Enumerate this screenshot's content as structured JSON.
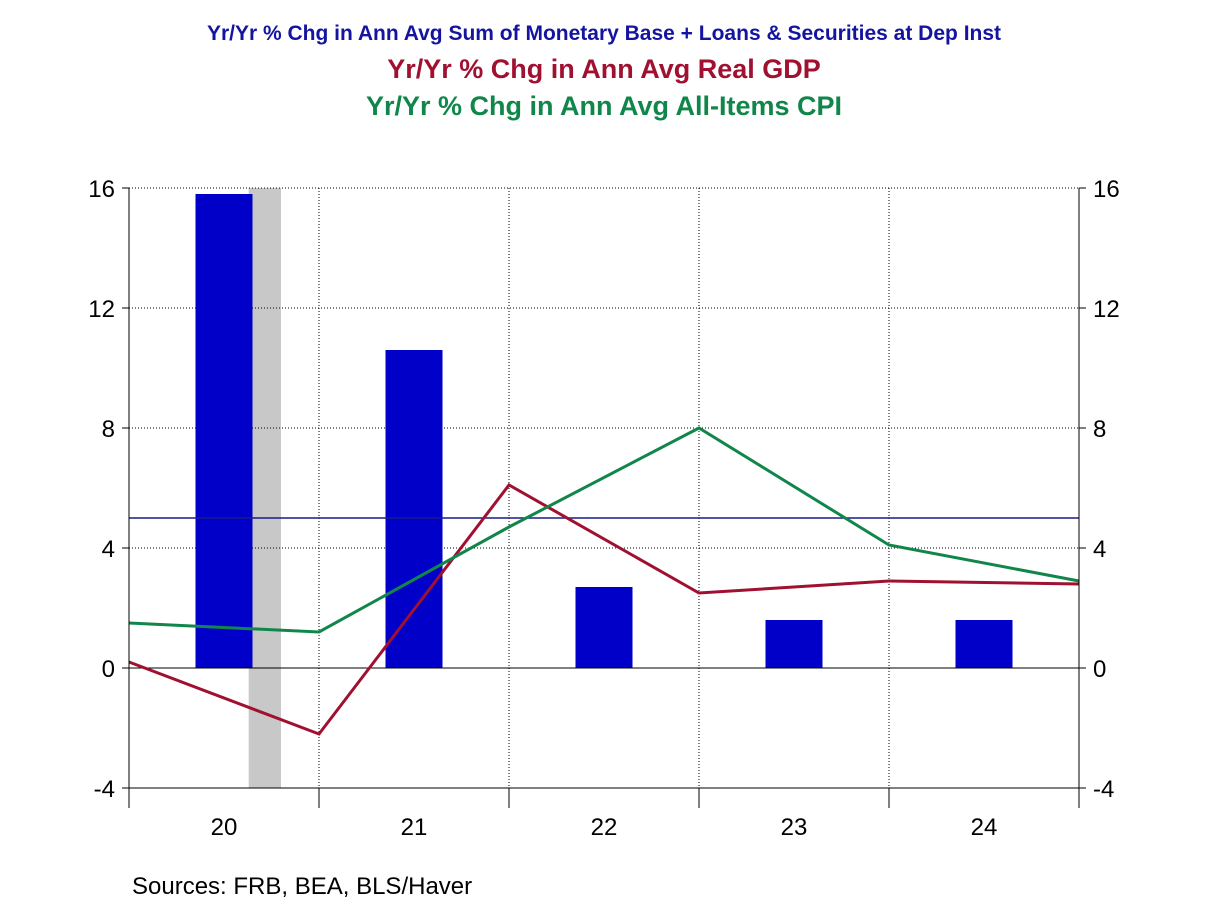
{
  "chart_data": {
    "type": "bar",
    "titles": [
      "Yr/Yr % Chg in Ann Avg Sum of Monetary Base + Loans & Securities at Dep Inst",
      "Yr/Yr % Chg in Ann Avg Real GDP",
      "Yr/Yr % Chg in Ann Avg All-Items CPI"
    ],
    "categories": [
      "20",
      "21",
      "22",
      "23",
      "24"
    ],
    "ylim": [
      -4,
      16
    ],
    "yticks": [
      "16",
      "12",
      "8",
      "4",
      "0",
      "-4"
    ],
    "yticks_right": [
      "16",
      "12",
      "8",
      "4",
      "0",
      "-4"
    ],
    "grid": true,
    "grid_style": "dotted",
    "recession_shading": {
      "start_year": 2020.13,
      "end_year": 2020.3
    },
    "reference_line": {
      "value": 5.0,
      "color": "#1a1a8c"
    },
    "bars": {
      "color": "#0000c8",
      "values": [
        15.8,
        10.6,
        2.7,
        1.6,
        1.6
      ]
    },
    "series": [
      {
        "type": "line",
        "color": "#a01030",
        "x": [
          2019.5,
          2020.5,
          2021.5,
          2022.5,
          2023.5,
          2024.5
        ],
        "values": [
          0.2,
          -2.2,
          6.1,
          2.5,
          2.9,
          2.8
        ]
      },
      {
        "type": "line",
        "color": "#10864a",
        "x": [
          2019.5,
          2020.5,
          2021.5,
          2022.5,
          2023.5,
          2024.5
        ],
        "values": [
          1.5,
          1.2,
          4.7,
          8.0,
          4.1,
          2.9
        ]
      }
    ]
  },
  "sources": "Sources:  FRB, BEA, BLS/Haver"
}
